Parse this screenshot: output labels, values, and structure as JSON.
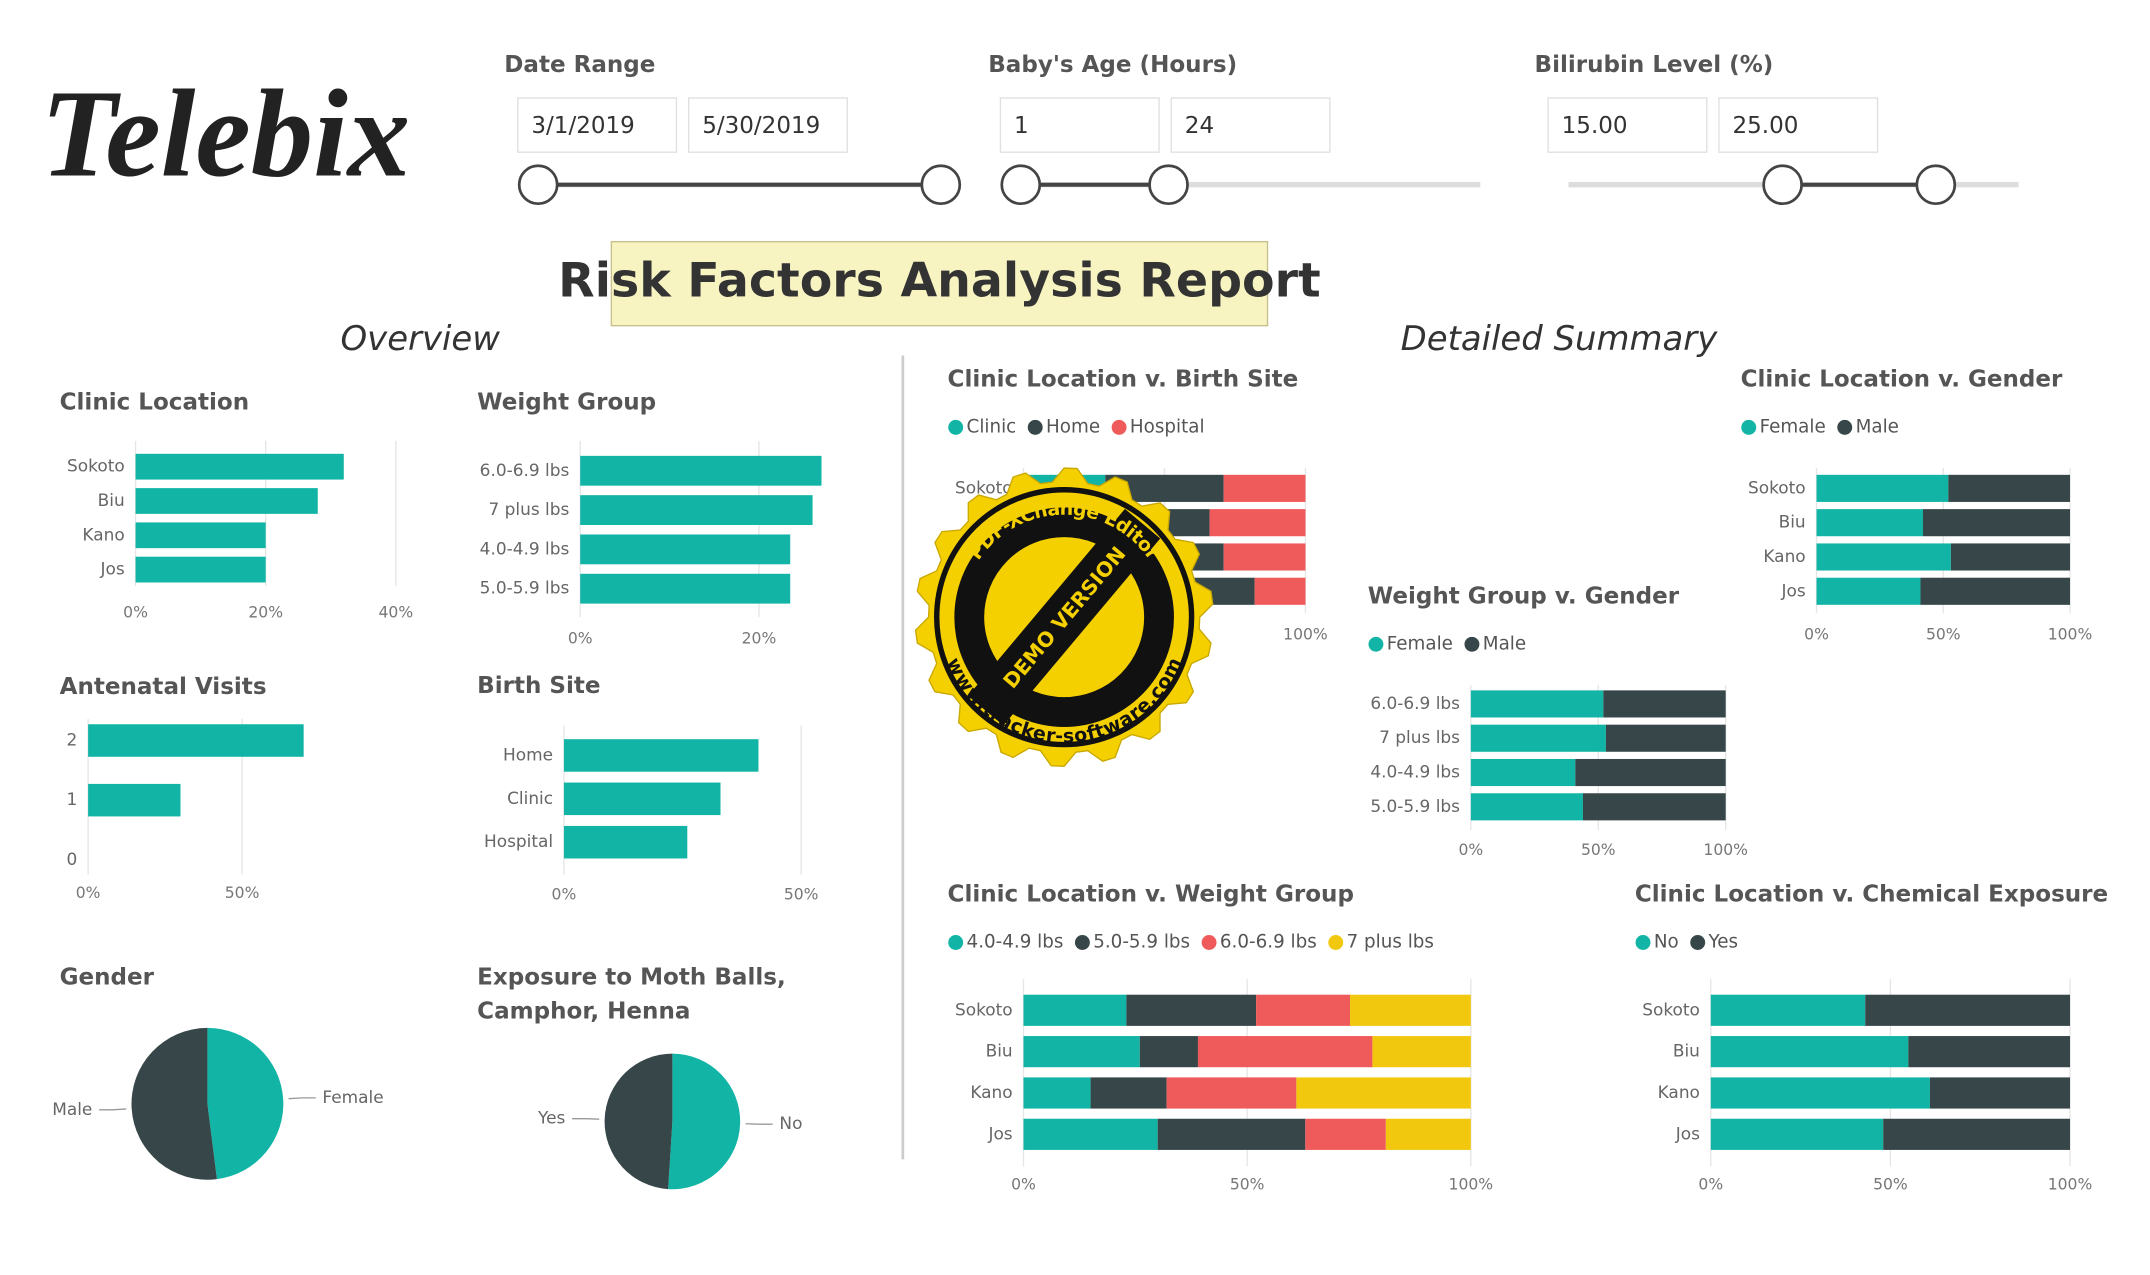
{
  "header": {
    "logo": "Telebix",
    "title": "Risk Factors Analysis Report",
    "sections": [
      "Overview",
      "Detailed Summary"
    ]
  },
  "slicers": [
    {
      "label": "Date Range",
      "from": "3/1/2019",
      "to": "5/30/2019"
    },
    {
      "label": "Baby's Age (Hours)",
      "from": "1",
      "to": "24"
    },
    {
      "label": "Bilirubin Level (%)",
      "from": "15.00",
      "to": "25.00"
    }
  ],
  "watermark": {
    "top": "PDF-XChange Editor",
    "middle": "DEMO VERSION",
    "bottom": "www.tracker-software.com"
  },
  "chart_data": [
    {
      "type": "bar",
      "title": "Clinic Location",
      "categories": [
        "Sokoto",
        "Biu",
        "Kano",
        "Jos"
      ],
      "values": [
        32,
        28,
        20,
        20
      ],
      "color": "#12b5a5",
      "xlim": [
        0,
        40
      ],
      "xticks": [
        {
          "value": 0,
          "label": "0%"
        },
        {
          "value": 20,
          "label": "20%"
        },
        {
          "value": 40,
          "label": "40%"
        }
      ],
      "grid": true
    },
    {
      "type": "bar",
      "title": "Weight Group",
      "categories": [
        "6.0-6.9 lbs",
        "7 plus lbs",
        "4.0-4.9 lbs",
        "5.0-5.9 lbs"
      ],
      "values": [
        27,
        26,
        23.5,
        23.5
      ],
      "color": "#12b5a5",
      "xlim": [
        0,
        27
      ],
      "xticks": [
        {
          "value": 0,
          "label": "0%"
        },
        {
          "value": 20,
          "label": "20%"
        }
      ],
      "grid": true
    },
    {
      "type": "bar",
      "title": "Antenatal Visits",
      "categories": [
        "2",
        "1",
        "0"
      ],
      "values": [
        70,
        30,
        0
      ],
      "color": "#12b5a5",
      "xlim": [
        0,
        70
      ],
      "xticks": [
        {
          "value": 0,
          "label": "0%"
        },
        {
          "value": 50,
          "label": "50%"
        }
      ],
      "grid": true
    },
    {
      "type": "bar",
      "title": "Birth Site",
      "categories": [
        "Home",
        "Clinic",
        "Hospital"
      ],
      "values": [
        41,
        33,
        26
      ],
      "color": "#12b5a5",
      "xlim": [
        0,
        50
      ],
      "xticks": [
        {
          "value": 0,
          "label": "0%"
        },
        {
          "value": 50,
          "label": "50%"
        }
      ],
      "grid": true
    },
    {
      "type": "pie",
      "title": "Gender",
      "categories": [
        "Female",
        "Male"
      ],
      "values": [
        48,
        52
      ],
      "colors": [
        "#12b5a5",
        "#374649"
      ]
    },
    {
      "type": "pie",
      "title": "Exposure to Moth Balls, Camphor, Henna",
      "categories": [
        "No",
        "Yes"
      ],
      "values": [
        51,
        49
      ],
      "colors": [
        "#12b5a5",
        "#374649"
      ]
    },
    {
      "type": "stacked-bar",
      "title": "Clinic Location v. Birth Site",
      "categories": [
        "Sokoto",
        "Biu",
        "Kano",
        "Jos"
      ],
      "series": [
        {
          "name": "Clinic",
          "color": "#12b5a5",
          "values": [
            29,
            35,
            40,
            40
          ]
        },
        {
          "name": "Home",
          "color": "#374649",
          "values": [
            42,
            31,
            31,
            42
          ]
        },
        {
          "name": "Hospital",
          "color": "#ef5b5b",
          "values": [
            29,
            34,
            29,
            18
          ]
        }
      ],
      "xlim": [
        0,
        100
      ],
      "xticks": [
        {
          "value": 0,
          "label": "0%"
        },
        {
          "value": 50,
          "label": "50%"
        },
        {
          "value": 100,
          "label": "100%"
        }
      ],
      "grid": true
    },
    {
      "type": "stacked-bar",
      "title": "Clinic Location v. Gender",
      "categories": [
        "Sokoto",
        "Biu",
        "Kano",
        "Jos"
      ],
      "series": [
        {
          "name": "Female",
          "color": "#12b5a5",
          "values": [
            52,
            42,
            53,
            41
          ]
        },
        {
          "name": "Male",
          "color": "#374649",
          "values": [
            48,
            58,
            47,
            59
          ]
        }
      ],
      "xlim": [
        0,
        100
      ],
      "xticks": [
        {
          "value": 0,
          "label": "0%"
        },
        {
          "value": 50,
          "label": "50%"
        },
        {
          "value": 100,
          "label": "100%"
        }
      ],
      "grid": true
    },
    {
      "type": "stacked-bar",
      "title": "Weight Group v. Gender",
      "categories": [
        "6.0-6.9 lbs",
        "7 plus lbs",
        "4.0-4.9 lbs",
        "5.0-5.9 lbs"
      ],
      "series": [
        {
          "name": "Female",
          "color": "#12b5a5",
          "values": [
            52,
            53,
            41,
            44
          ]
        },
        {
          "name": "Male",
          "color": "#374649",
          "values": [
            48,
            47,
            59,
            56
          ]
        }
      ],
      "xlim": [
        0,
        100
      ],
      "xticks": [
        {
          "value": 0,
          "label": "0%"
        },
        {
          "value": 50,
          "label": "50%"
        },
        {
          "value": 100,
          "label": "100%"
        }
      ],
      "grid": true
    },
    {
      "type": "stacked-bar",
      "title": "Clinic Location v. Weight Group",
      "categories": [
        "Sokoto",
        "Biu",
        "Kano",
        "Jos"
      ],
      "series": [
        {
          "name": "4.0-4.9 lbs",
          "color": "#12b5a5",
          "values": [
            23,
            26,
            15,
            30
          ]
        },
        {
          "name": "5.0-5.9 lbs",
          "color": "#374649",
          "values": [
            29,
            13,
            17,
            33
          ]
        },
        {
          "name": "6.0-6.9 lbs",
          "color": "#ef5b5b",
          "values": [
            21,
            39,
            29,
            18
          ]
        },
        {
          "name": "7 plus lbs",
          "color": "#f2c80f",
          "values": [
            27,
            22,
            39,
            19
          ]
        }
      ],
      "xlim": [
        0,
        100
      ],
      "xticks": [
        {
          "value": 0,
          "label": "0%"
        },
        {
          "value": 50,
          "label": "50%"
        },
        {
          "value": 100,
          "label": "100%"
        }
      ],
      "grid": true
    },
    {
      "type": "stacked-bar",
      "title": "Clinic Location v. Chemical Exposure",
      "categories": [
        "Sokoto",
        "Biu",
        "Kano",
        "Jos"
      ],
      "series": [
        {
          "name": "No",
          "color": "#12b5a5",
          "values": [
            43,
            55,
            61,
            48
          ]
        },
        {
          "name": "Yes",
          "color": "#374649",
          "values": [
            57,
            45,
            39,
            52
          ]
        }
      ],
      "xlim": [
        0,
        100
      ],
      "xticks": [
        {
          "value": 0,
          "label": "0%"
        },
        {
          "value": 50,
          "label": "50%"
        },
        {
          "value": 100,
          "label": "100%"
        }
      ],
      "grid": true
    }
  ]
}
